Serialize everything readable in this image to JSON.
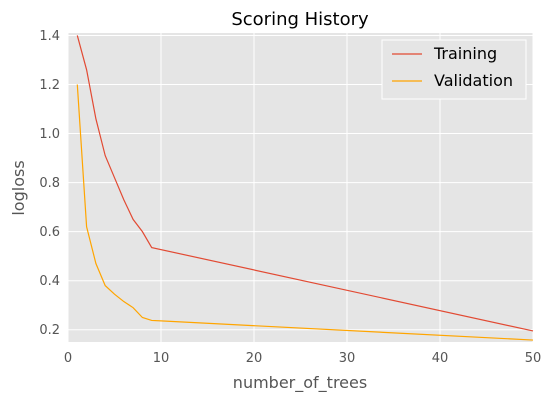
{
  "chart_data": {
    "type": "line",
    "title": "Scoring History",
    "xlabel": "number_of_trees",
    "ylabel": "logloss",
    "xlim": [
      0,
      50
    ],
    "ylim": [
      0.15,
      1.41
    ],
    "xticks": [
      0,
      10,
      20,
      30,
      40,
      50
    ],
    "yticks": [
      0.2,
      0.4,
      0.6,
      0.8,
      1.0,
      1.2,
      1.4
    ],
    "ytick_labels": [
      "0.2",
      "0.4",
      "0.6",
      "0.8",
      "1.0",
      "1.2",
      "1.4"
    ],
    "grid": true,
    "legend_position": "top-right",
    "background": "#e5e5e5",
    "series": [
      {
        "name": "Training",
        "color": "#e24a33",
        "x": [
          1,
          2,
          3,
          4,
          5,
          6,
          7,
          8,
          9,
          50
        ],
        "y": [
          1.4,
          1.26,
          1.06,
          0.91,
          0.82,
          0.73,
          0.65,
          0.6,
          0.535,
          0.195
        ]
      },
      {
        "name": "Validation",
        "color": "#ffa500",
        "x": [
          1,
          2,
          3,
          4,
          5,
          6,
          7,
          8,
          9,
          10,
          50
        ],
        "y": [
          1.2,
          0.62,
          0.47,
          0.38,
          0.345,
          0.315,
          0.29,
          0.25,
          0.238,
          0.236,
          0.158
        ]
      }
    ]
  }
}
